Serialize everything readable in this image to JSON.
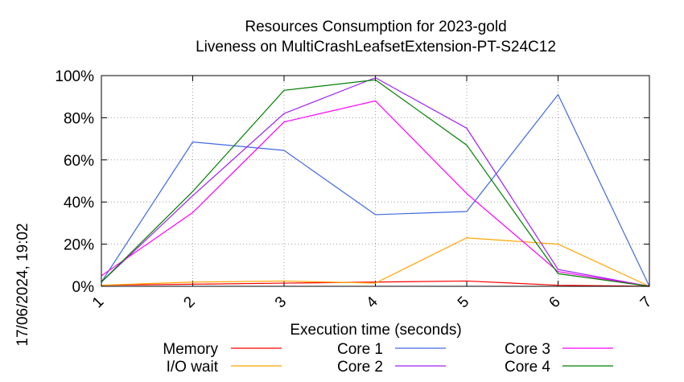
{
  "chart_data": {
    "type": "line",
    "title": "Resources Consumption for 2023-gold",
    "subtitle": "Liveness on MultiCrashLeafsetExtension-PT-S24C12",
    "xlabel": "Execution time (seconds)",
    "ylabel": "",
    "timestamp": "17/06/2024, 19:02",
    "xlim": [
      1,
      7
    ],
    "ylim": [
      0,
      100
    ],
    "x_ticks": [
      "1",
      "2",
      "3",
      "4",
      "5",
      "6",
      "7"
    ],
    "y_ticks": [
      "0%",
      "20%",
      "40%",
      "60%",
      "80%",
      "100%"
    ],
    "grid": true,
    "legend_position": "bottom",
    "x": [
      1,
      2,
      3,
      4,
      5,
      6,
      7
    ],
    "series": [
      {
        "name": "Memory",
        "color": "#ff0000",
        "values": [
          0.5,
          1.0,
          1.5,
          2.0,
          2.5,
          0.5,
          0
        ]
      },
      {
        "name": "I/O wait",
        "color": "#ffa500",
        "values": [
          0.5,
          2.0,
          2.5,
          1.5,
          23.0,
          20.0,
          0
        ]
      },
      {
        "name": "Core 1",
        "color": "#4169e1",
        "values": [
          2.0,
          68.5,
          64.5,
          34.0,
          35.5,
          91.0,
          0
        ]
      },
      {
        "name": "Core 2",
        "color": "#a020f0",
        "values": [
          2.0,
          43.0,
          82.0,
          99.0,
          75.0,
          8.0,
          0
        ]
      },
      {
        "name": "Core 3",
        "color": "#ff00ff",
        "values": [
          5.0,
          35.0,
          78.0,
          88.0,
          44.0,
          7.0,
          0
        ]
      },
      {
        "name": "Core 4",
        "color": "#008000",
        "values": [
          2.0,
          45.0,
          93.0,
          98.0,
          67.0,
          6.0,
          0
        ]
      }
    ]
  }
}
